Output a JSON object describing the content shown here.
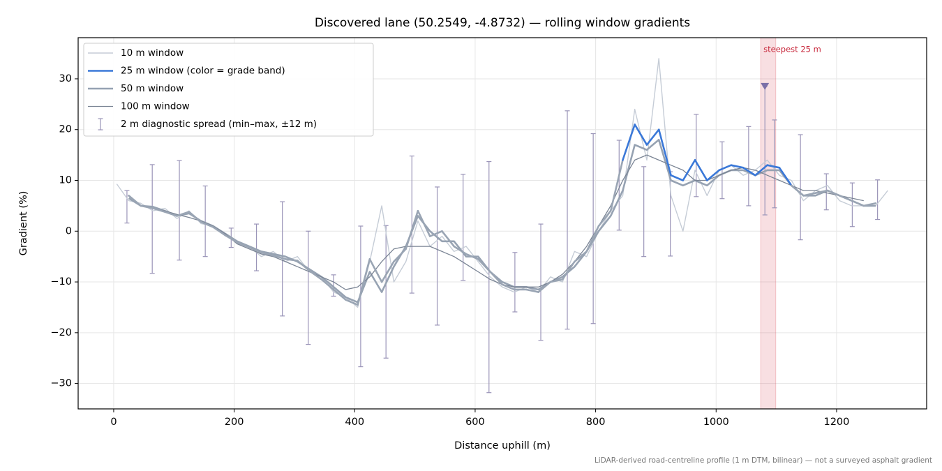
{
  "chart_data": {
    "type": "line",
    "title": "Discovered lane (50.2549, -4.8732) — rolling window gradients",
    "xlabel": "Distance uphill (m)",
    "ylabel": "Gradient (%)",
    "footnote": "LiDAR-derived road-centreline profile (1 m DTM, bilinear) — not a surveyed asphalt gradient",
    "xlim": [
      -59,
      1349.5
    ],
    "ylim": [
      -35,
      38.1
    ],
    "xticks": [
      0,
      200,
      400,
      600,
      800,
      1000,
      1200
    ],
    "yticks": [
      {
        "value": -30,
        "label": "−30"
      },
      {
        "value": -20,
        "label": "−20"
      },
      {
        "value": -10,
        "label": "−10"
      },
      0,
      10,
      20,
      30
    ],
    "grid": true,
    "legend": "upper left",
    "x": [
      5,
      25,
      45,
      65,
      85,
      105,
      125,
      145,
      165,
      185,
      205,
      225,
      245,
      265,
      285,
      305,
      325,
      345,
      365,
      385,
      405,
      425,
      445,
      465,
      485,
      505,
      525,
      545,
      565,
      585,
      605,
      625,
      645,
      665,
      685,
      705,
      725,
      745,
      765,
      785,
      805,
      825,
      845,
      865,
      885,
      905,
      925,
      945,
      965,
      985,
      1005,
      1025,
      1045,
      1065,
      1085,
      1105,
      1125,
      1145,
      1165,
      1185,
      1205,
      1225,
      1245,
      1265,
      1285
    ],
    "series": [
      {
        "name": "10 m window",
        "color": "#c5ccd6",
        "values": [
          9.3,
          6,
          5.5,
          4,
          4.5,
          2.5,
          4,
          1.5,
          1,
          -0.5,
          -2.5,
          -3,
          -5,
          -4,
          -6,
          -5,
          -8,
          -9,
          -12,
          -13,
          -15,
          -6,
          5,
          -10,
          -6,
          2,
          -3,
          -1,
          -4,
          -3,
          -6,
          -9,
          -11,
          -12,
          -11,
          -12,
          -9,
          -10,
          -4,
          -5,
          0,
          4,
          7,
          24,
          14,
          34,
          7,
          0,
          12,
          7,
          12,
          13,
          11,
          12,
          14,
          11,
          10,
          6,
          8,
          9,
          6,
          5,
          5,
          5,
          8
        ]
      },
      {
        "name": "25 m window (color = grade band)",
        "color": "#3a78d8",
        "base_color": "#9aa5b4",
        "grade_bands": [
          {
            "min": 10,
            "color": "#3a78d8"
          },
          {
            "min": 20,
            "color": "#e08a00"
          }
        ],
        "values": [
          null,
          7,
          5,
          4.5,
          3.8,
          3,
          3.8,
          1.8,
          0.8,
          -0.8,
          -2.2,
          -3.2,
          -4.2,
          -4.8,
          -5.5,
          -5.8,
          -7.8,
          -9.5,
          -11.5,
          -13.5,
          -14.5,
          -5.5,
          -10,
          -6,
          -3.5,
          4,
          -1,
          0,
          -3,
          -4.5,
          -5.5,
          -8,
          -10.5,
          -11.5,
          -11.5,
          -12,
          -10,
          -9.5,
          -6,
          -4,
          1,
          4,
          14,
          21,
          17,
          20,
          11,
          10,
          14,
          10,
          12,
          13,
          12.5,
          11,
          13,
          12.5,
          9,
          7,
          7.5,
          8,
          7,
          6,
          5,
          5.5,
          null
        ]
      },
      {
        "name": "50 m window",
        "color": "#96a2b2",
        "values": [
          null,
          6.5,
          5,
          4.8,
          4,
          3,
          3.5,
          2,
          1,
          -0.5,
          -2,
          -3,
          -4,
          -4.5,
          -5,
          -6,
          -7.5,
          -9,
          -11,
          -13,
          -14,
          -8,
          -12,
          -7,
          -3,
          3,
          0,
          -2,
          -2,
          -5,
          -5,
          -8,
          -10,
          -11,
          -11,
          -11.5,
          -10,
          -9,
          -7,
          -4,
          0,
          3,
          8,
          17,
          16,
          18,
          10,
          9,
          10,
          9,
          11,
          12,
          12,
          11,
          12,
          12,
          9,
          7,
          7,
          8,
          7,
          6,
          5,
          5,
          null
        ]
      },
      {
        "name": "100 m window",
        "color": "#7a8494",
        "values": [
          null,
          null,
          5,
          4.5,
          4,
          3.3,
          2.7,
          2,
          1,
          -0.5,
          -2.5,
          -3.5,
          -4.5,
          -5,
          -6,
          -7,
          -8,
          -9,
          -10,
          -11.5,
          -11,
          -9,
          -6,
          -3.5,
          -3,
          -3,
          -3,
          -4,
          -5,
          -6.5,
          -8,
          -9.5,
          -10.5,
          -11,
          -11,
          -11,
          -10,
          -8.5,
          -6,
          -3,
          1,
          5,
          10,
          14,
          15,
          14,
          13,
          12,
          10,
          10,
          11,
          12,
          12.5,
          12,
          11,
          10,
          9,
          8,
          8,
          7.5,
          7,
          6.5,
          6,
          null,
          null
        ]
      }
    ],
    "errorbars": {
      "name": "2 m diagnostic spread (min–max, ±12 m)",
      "color": "#9a94b8",
      "x": [
        22,
        64,
        109,
        152,
        195,
        237,
        280,
        323,
        365,
        410,
        452,
        495,
        537,
        580,
        623,
        666,
        709,
        753,
        796,
        839,
        880,
        924,
        967,
        1010,
        1054,
        1081,
        1097,
        1140,
        1183,
        1226,
        1268
      ],
      "low": [
        1.6,
        -8.3,
        -5.7,
        -5.0,
        -3.2,
        -7.8,
        -16.7,
        -22.3,
        -12.8,
        -26.7,
        -25.0,
        -12.2,
        -18.5,
        -9.7,
        -31.8,
        -15.9,
        -21.5,
        -19.3,
        -18.2,
        0.2,
        -5.0,
        -4.9,
        6.8,
        6.4,
        5.0,
        3.2,
        4.6,
        -1.7,
        4.2,
        0.9,
        2.3
      ],
      "high": [
        8.0,
        13.1,
        13.9,
        8.9,
        0.6,
        1.4,
        5.8,
        0,
        -8.6,
        1.0,
        1.1,
        14.8,
        8.7,
        11.2,
        13.7,
        -4.2,
        1.4,
        23.7,
        19.2,
        17.9,
        12.7,
        11.7,
        23.0,
        17.6,
        20.6,
        28.5,
        21.9,
        19.0,
        11.3,
        9.5,
        10.1
      ]
    },
    "highlight": {
      "label": "steepest 25 m",
      "xlim": [
        1074,
        1099
      ],
      "color": "#d94f5c",
      "label_color": "#c8283c"
    },
    "marker": {
      "x": 1081,
      "y": 28.5,
      "color": "#7b6fa8"
    }
  }
}
